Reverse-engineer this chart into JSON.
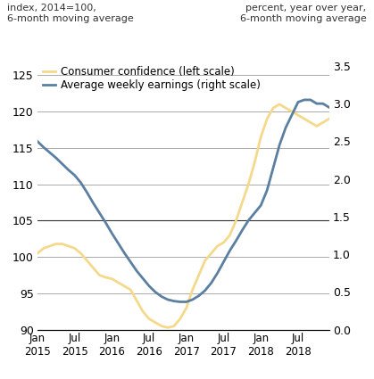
{
  "title_left": "index, 2014=100,\n6-month moving average",
  "title_right": "percent, year over year,\n6-month moving average",
  "left_ylim": [
    90,
    127
  ],
  "right_ylim": [
    0.0,
    3.57
  ],
  "left_yticks": [
    90,
    95,
    100,
    105,
    110,
    115,
    120,
    125
  ],
  "right_yticks": [
    0.0,
    0.5,
    1.0,
    1.5,
    2.0,
    2.5,
    3.0,
    3.5
  ],
  "consumer_confidence_color": "#f5d98b",
  "avg_weekly_earnings_color": "#5a7fa0",
  "legend_cc": "Consumer confidence (left scale)",
  "legend_awe": "Average weekly earnings (right scale)",
  "consumer_confidence": {
    "values": [
      100.5,
      101.2,
      101.5,
      101.8,
      101.8,
      101.5,
      101.2,
      100.5,
      99.5,
      98.5,
      97.5,
      97.2,
      97.0,
      96.5,
      96.0,
      95.5,
      94.0,
      92.5,
      91.5,
      91.0,
      90.5,
      90.3,
      90.5,
      91.5,
      93.0,
      95.5,
      97.5,
      99.5,
      100.5,
      101.5,
      102.0,
      103.0,
      105.0,
      107.5,
      110.0,
      113.0,
      116.5,
      119.0,
      120.5,
      121.0,
      120.5,
      120.0,
      119.5,
      119.0,
      118.5,
      118.0,
      118.5,
      119.0
    ]
  },
  "avg_weekly_earnings": {
    "values": [
      2.5,
      2.42,
      2.35,
      2.28,
      2.2,
      2.12,
      2.05,
      1.95,
      1.82,
      1.68,
      1.55,
      1.42,
      1.28,
      1.15,
      1.02,
      0.9,
      0.78,
      0.68,
      0.58,
      0.5,
      0.44,
      0.4,
      0.38,
      0.37,
      0.37,
      0.4,
      0.45,
      0.52,
      0.62,
      0.75,
      0.9,
      1.05,
      1.18,
      1.32,
      1.45,
      1.55,
      1.65,
      1.85,
      2.15,
      2.45,
      2.68,
      2.85,
      3.02,
      3.05,
      3.05,
      3.0,
      3.0,
      2.95
    ]
  },
  "num_points": 48,
  "xtick_positions": [
    0,
    6,
    12,
    18,
    24,
    30,
    36,
    42
  ],
  "xtick_labels": [
    "Jan\n2015",
    "Jul\n2015",
    "Jan\n2016",
    "Jul\n2016",
    "Jan\n2017",
    "Jul\n2017",
    "Jan\n2018",
    "Jul\n2018"
  ],
  "dark_gridline_value": 105,
  "background_color": "#ffffff"
}
